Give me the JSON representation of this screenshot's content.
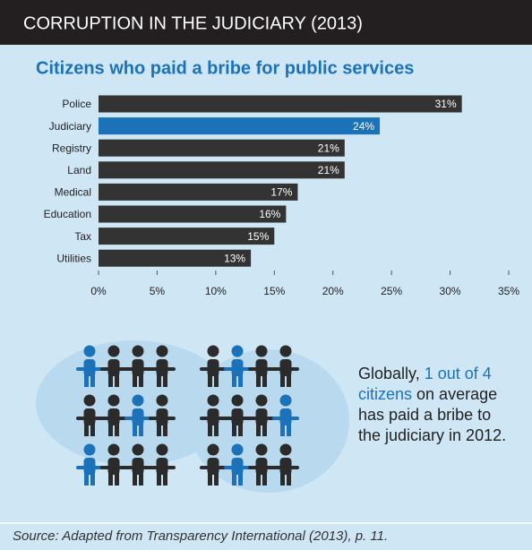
{
  "chart_data": {
    "type": "bar",
    "orientation": "horizontal",
    "title": "CORRUPTION IN THE JUDICIARY (2013)",
    "subtitle": "Citizens who paid a bribe for public services",
    "categories": [
      "Police",
      "Judiciary",
      "Registry",
      "Land",
      "Medical",
      "Education",
      "Tax",
      "Utilities"
    ],
    "values": [
      31,
      24,
      21,
      21,
      17,
      16,
      15,
      13
    ],
    "value_labels": [
      "31%",
      "24%",
      "21%",
      "21%",
      "17%",
      "16%",
      "15%",
      "13%"
    ],
    "colors": [
      "#333333",
      "#1b72b9",
      "#333333",
      "#333333",
      "#333333",
      "#333333",
      "#333333",
      "#333333"
    ],
    "xlim": [
      0,
      35
    ],
    "xticks": [
      {
        "value": 0,
        "label": "0%"
      },
      {
        "value": 5,
        "label": "5%"
      },
      {
        "value": 10,
        "label": "10%"
      },
      {
        "value": 15,
        "label": "15%"
      },
      {
        "value": 20,
        "label": "20%"
      },
      {
        "value": 25,
        "label": "25%"
      },
      {
        "value": 30,
        "label": "30%"
      },
      {
        "value": 35,
        "label": "35%"
      }
    ],
    "grid": false,
    "callout": [
      "Globally, ",
      "1 out of 4 citizens",
      " on average has paid a bribe to the judiciary in 2012."
    ],
    "source": "Source: Adapted from Transparency International (2013), p. 11."
  }
}
